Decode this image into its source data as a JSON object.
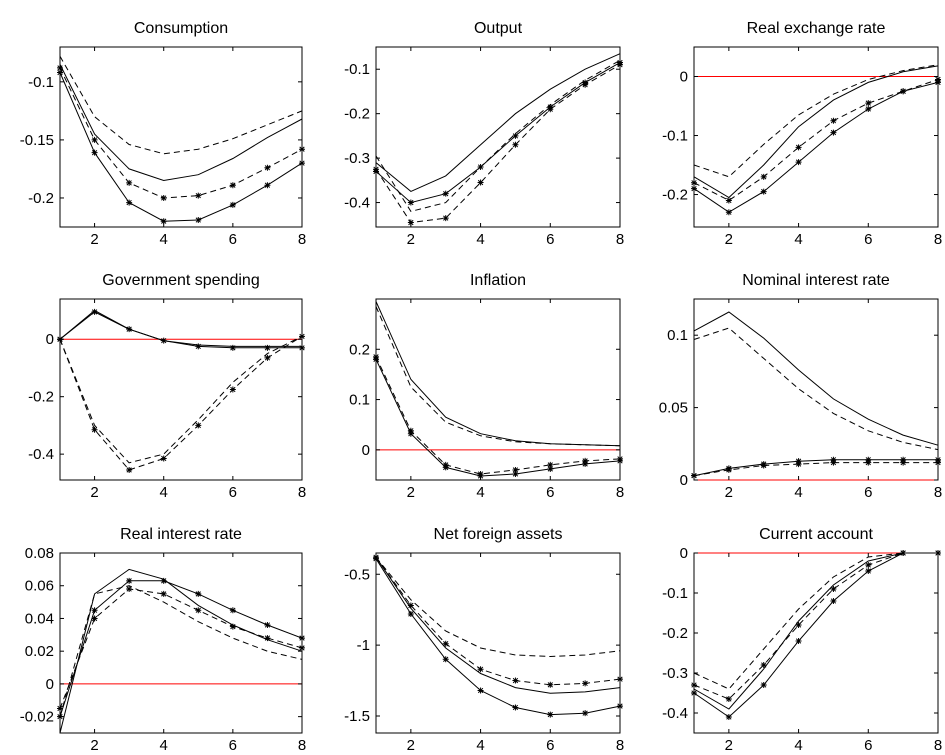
{
  "chart_data": [
    {
      "type": "line",
      "title": "Consumption",
      "x": [
        1,
        2,
        3,
        4,
        5,
        6,
        7,
        8
      ],
      "xlim": [
        1,
        8
      ],
      "ylim": [
        -0.225,
        -0.07
      ],
      "xticks": [
        2,
        4,
        6,
        8
      ],
      "yticks": [
        -0.2,
        -0.15,
        -0.1
      ],
      "xticklabels": [
        "2",
        "4",
        "6",
        "8"
      ],
      "yticklabels": [
        "-0.2",
        "-0.15",
        "-0.1"
      ],
      "zero_line": false,
      "series": [
        {
          "style": "solid",
          "markers": false,
          "values": [
            -0.085,
            -0.145,
            -0.175,
            -0.185,
            -0.18,
            -0.166,
            -0.148,
            -0.132
          ]
        },
        {
          "style": "dashed",
          "markers": false,
          "values": [
            -0.078,
            -0.13,
            -0.154,
            -0.162,
            -0.158,
            -0.149,
            -0.137,
            -0.125
          ]
        },
        {
          "style": "dashed",
          "markers": true,
          "values": [
            -0.088,
            -0.15,
            -0.187,
            -0.2,
            -0.198,
            -0.189,
            -0.174,
            -0.158
          ]
        },
        {
          "style": "solid",
          "markers": true,
          "values": [
            -0.092,
            -0.161,
            -0.204,
            -0.22,
            -0.219,
            -0.206,
            -0.189,
            -0.17
          ]
        }
      ]
    },
    {
      "type": "line",
      "title": "Output",
      "x": [
        1,
        2,
        3,
        4,
        5,
        6,
        7,
        8
      ],
      "xlim": [
        1,
        8
      ],
      "ylim": [
        -0.455,
        -0.05
      ],
      "xticks": [
        2,
        4,
        6,
        8
      ],
      "yticks": [
        -0.4,
        -0.3,
        -0.2,
        -0.1
      ],
      "xticklabels": [
        "2",
        "4",
        "6",
        "8"
      ],
      "yticklabels": [
        "-0.4",
        "-0.3",
        "-0.2",
        "-0.1"
      ],
      "zero_line": false,
      "series": [
        {
          "style": "solid",
          "markers": false,
          "values": [
            -0.31,
            -0.375,
            -0.34,
            -0.27,
            -0.2,
            -0.145,
            -0.1,
            -0.065
          ]
        },
        {
          "style": "dashed",
          "markers": false,
          "values": [
            -0.295,
            -0.42,
            -0.4,
            -0.32,
            -0.245,
            -0.18,
            -0.125,
            -0.08
          ]
        },
        {
          "style": "dashed",
          "markers": true,
          "values": [
            -0.325,
            -0.445,
            -0.435,
            -0.355,
            -0.27,
            -0.19,
            -0.135,
            -0.09
          ]
        },
        {
          "style": "solid",
          "markers": true,
          "values": [
            -0.33,
            -0.4,
            -0.38,
            -0.32,
            -0.25,
            -0.185,
            -0.13,
            -0.085
          ]
        }
      ]
    },
    {
      "type": "line",
      "title": "Real exchange rate",
      "x": [
        1,
        2,
        3,
        4,
        5,
        6,
        7,
        8
      ],
      "xlim": [
        1,
        8
      ],
      "ylim": [
        -0.255,
        0.05
      ],
      "xticks": [
        2,
        4,
        6,
        8
      ],
      "yticks": [
        -0.2,
        -0.1,
        0
      ],
      "xticklabels": [
        "2",
        "4",
        "6",
        "8"
      ],
      "yticklabels": [
        "-0.2",
        "-0.1",
        "0"
      ],
      "zero_line": true,
      "series": [
        {
          "style": "solid",
          "markers": false,
          "values": [
            -0.17,
            -0.205,
            -0.15,
            -0.085,
            -0.04,
            -0.01,
            0.008,
            0.018
          ]
        },
        {
          "style": "dashed",
          "markers": false,
          "values": [
            -0.15,
            -0.17,
            -0.115,
            -0.065,
            -0.03,
            -0.005,
            0.01,
            0.02
          ]
        },
        {
          "style": "dashed",
          "markers": true,
          "values": [
            -0.18,
            -0.21,
            -0.17,
            -0.12,
            -0.075,
            -0.045,
            -0.025,
            -0.005
          ]
        },
        {
          "style": "solid",
          "markers": true,
          "values": [
            -0.19,
            -0.23,
            -0.195,
            -0.145,
            -0.095,
            -0.055,
            -0.025,
            -0.01
          ]
        }
      ]
    },
    {
      "type": "line",
      "title": "Government spending",
      "x": [
        1,
        2,
        3,
        4,
        5,
        6,
        7,
        8
      ],
      "xlim": [
        1,
        8
      ],
      "ylim": [
        -0.49,
        0.14
      ],
      "xticks": [
        2,
        4,
        6,
        8
      ],
      "yticks": [
        -0.4,
        -0.2,
        0
      ],
      "xticklabels": [
        "2",
        "4",
        "6",
        "8"
      ],
      "yticklabels": [
        "-0.4",
        "-0.2",
        "0"
      ],
      "zero_line": true,
      "series": [
        {
          "style": "solid",
          "markers": false,
          "values": [
            0,
            0.1,
            0.035,
            -0.005,
            -0.02,
            -0.025,
            -0.025,
            -0.025
          ]
        },
        {
          "style": "solid",
          "markers": true,
          "values": [
            0,
            0.095,
            0.035,
            -0.005,
            -0.025,
            -0.03,
            -0.03,
            -0.03
          ]
        },
        {
          "style": "dashed",
          "markers": false,
          "values": [
            0,
            -0.3,
            -0.43,
            -0.4,
            -0.28,
            -0.15,
            -0.05,
            0.01
          ]
        },
        {
          "style": "dashed",
          "markers": true,
          "values": [
            0,
            -0.315,
            -0.455,
            -0.415,
            -0.3,
            -0.175,
            -0.065,
            0.01
          ]
        }
      ]
    },
    {
      "type": "line",
      "title": "Inflation",
      "x": [
        1,
        2,
        3,
        4,
        5,
        6,
        7,
        8
      ],
      "xlim": [
        1,
        8
      ],
      "ylim": [
        -0.06,
        0.3
      ],
      "xticks": [
        2,
        4,
        6,
        8
      ],
      "yticks": [
        0,
        0.1,
        0.2
      ],
      "xticklabels": [
        "2",
        "4",
        "6",
        "8"
      ],
      "yticklabels": [
        "0",
        "0.1",
        "0.2"
      ],
      "zero_line": true,
      "series": [
        {
          "style": "solid",
          "markers": false,
          "values": [
            0.295,
            0.14,
            0.065,
            0.032,
            0.018,
            0.012,
            0.01,
            0.008
          ]
        },
        {
          "style": "dashed",
          "markers": false,
          "values": [
            0.285,
            0.125,
            0.055,
            0.028,
            0.016,
            0.012,
            0.01,
            0.008
          ]
        },
        {
          "style": "dashed",
          "markers": true,
          "values": [
            0.185,
            0.038,
            -0.03,
            -0.048,
            -0.04,
            -0.03,
            -0.022,
            -0.018
          ]
        },
        {
          "style": "solid",
          "markers": true,
          "values": [
            0.18,
            0.032,
            -0.035,
            -0.052,
            -0.048,
            -0.038,
            -0.028,
            -0.022
          ]
        }
      ]
    },
    {
      "type": "line",
      "title": "Nominal interest rate",
      "x": [
        1,
        2,
        3,
        4,
        5,
        6,
        7,
        8
      ],
      "xlim": [
        1,
        8
      ],
      "ylim": [
        0,
        0.125
      ],
      "xticks": [
        2,
        4,
        6,
        8
      ],
      "yticks": [
        0,
        0.05,
        0.1
      ],
      "xticklabels": [
        "2",
        "4",
        "6",
        "8"
      ],
      "yticklabels": [
        "0",
        "0.05",
        "0.1"
      ],
      "zero_line": true,
      "series": [
        {
          "style": "solid",
          "markers": false,
          "values": [
            0.103,
            0.116,
            0.098,
            0.076,
            0.056,
            0.042,
            0.031,
            0.024
          ]
        },
        {
          "style": "dashed",
          "markers": false,
          "values": [
            0.097,
            0.105,
            0.084,
            0.063,
            0.046,
            0.034,
            0.026,
            0.021
          ]
        },
        {
          "style": "solid",
          "markers": true,
          "values": [
            0.003,
            0.008,
            0.011,
            0.013,
            0.014,
            0.014,
            0.014,
            0.014
          ]
        },
        {
          "style": "dashed",
          "markers": true,
          "values": [
            0.003,
            0.007,
            0.01,
            0.011,
            0.012,
            0.012,
            0.012,
            0.012
          ]
        }
      ]
    },
    {
      "type": "line",
      "title": "Real interest rate",
      "x": [
        1,
        2,
        3,
        4,
        5,
        6,
        7,
        8
      ],
      "xlim": [
        1,
        8
      ],
      "ylim": [
        -0.03,
        0.08
      ],
      "xticks": [
        2,
        4,
        6,
        8
      ],
      "yticks": [
        -0.02,
        0,
        0.02,
        0.04,
        0.06,
        0.08
      ],
      "xticklabels": [
        "2",
        "4",
        "6",
        "8"
      ],
      "yticklabels": [
        "-0.02",
        "0",
        "0.02",
        "0.04",
        "0.06",
        "0.08"
      ],
      "zero_line": true,
      "series": [
        {
          "style": "solid",
          "markers": false,
          "values": [
            -0.03,
            0.055,
            0.07,
            0.064,
            0.048,
            0.036,
            0.027,
            0.02
          ]
        },
        {
          "style": "dashed",
          "markers": false,
          "values": [
            -0.02,
            0.055,
            0.06,
            0.05,
            0.038,
            0.028,
            0.02,
            0.015
          ]
        },
        {
          "style": "solid",
          "markers": true,
          "values": [
            -0.02,
            0.045,
            0.063,
            0.063,
            0.055,
            0.045,
            0.036,
            0.028
          ]
        },
        {
          "style": "dashed",
          "markers": true,
          "values": [
            -0.015,
            0.04,
            0.058,
            0.055,
            0.045,
            0.035,
            0.028,
            0.022
          ]
        }
      ]
    },
    {
      "type": "line",
      "title": "Net foreign assets",
      "x": [
        1,
        2,
        3,
        4,
        5,
        6,
        7,
        8
      ],
      "xlim": [
        1,
        8
      ],
      "ylim": [
        -1.62,
        -0.35
      ],
      "xticks": [
        2,
        4,
        6,
        8
      ],
      "yticks": [
        -1.5,
        -1,
        -0.5
      ],
      "xticklabels": [
        "2",
        "4",
        "6",
        "8"
      ],
      "yticklabels": [
        "-1.5",
        "-1",
        "-0.5"
      ],
      "zero_line": false,
      "series": [
        {
          "style": "dashed",
          "markers": false,
          "values": [
            -0.38,
            -0.68,
            -0.9,
            -1.02,
            -1.07,
            -1.08,
            -1.07,
            -1.04
          ]
        },
        {
          "style": "solid",
          "markers": false,
          "values": [
            -0.38,
            -0.74,
            -1.02,
            -1.2,
            -1.3,
            -1.34,
            -1.33,
            -1.3
          ]
        },
        {
          "style": "dashed",
          "markers": true,
          "values": [
            -0.38,
            -0.72,
            -0.99,
            -1.17,
            -1.25,
            -1.28,
            -1.27,
            -1.24
          ]
        },
        {
          "style": "solid",
          "markers": true,
          "values": [
            -0.39,
            -0.78,
            -1.1,
            -1.32,
            -1.44,
            -1.49,
            -1.48,
            -1.43
          ]
        }
      ]
    },
    {
      "type": "line",
      "title": "Current account",
      "x": [
        1,
        2,
        3,
        4,
        5,
        6,
        7,
        8
      ],
      "xlim": [
        1,
        8
      ],
      "ylim": [
        -0.45,
        0
      ],
      "xticks": [
        2,
        4,
        6,
        8
      ],
      "yticks": [
        -0.4,
        -0.3,
        -0.2,
        -0.1,
        0
      ],
      "xticklabels": [
        "2",
        "4",
        "6",
        "8"
      ],
      "yticklabels": [
        "-0.4",
        "-0.3",
        "-0.2",
        "-0.1",
        "0"
      ],
      "zero_line": true,
      "series": [
        {
          "style": "dashed",
          "markers": false,
          "values": [
            -0.3,
            -0.34,
            -0.24,
            -0.14,
            -0.06,
            -0.01,
            0,
            0
          ]
        },
        {
          "style": "solid",
          "markers": false,
          "values": [
            -0.34,
            -0.39,
            -0.29,
            -0.17,
            -0.08,
            -0.02,
            0,
            0
          ]
        },
        {
          "style": "dashed",
          "markers": true,
          "values": [
            -0.33,
            -0.365,
            -0.28,
            -0.18,
            -0.09,
            -0.03,
            0,
            0
          ]
        },
        {
          "style": "solid",
          "markers": true,
          "values": [
            -0.35,
            -0.41,
            -0.33,
            -0.22,
            -0.12,
            -0.045,
            0,
            0
          ]
        }
      ]
    }
  ],
  "colors": {
    "zero_line": "#ff0000",
    "series": "#000000",
    "axes": "#000000",
    "background": "#ffffff"
  }
}
